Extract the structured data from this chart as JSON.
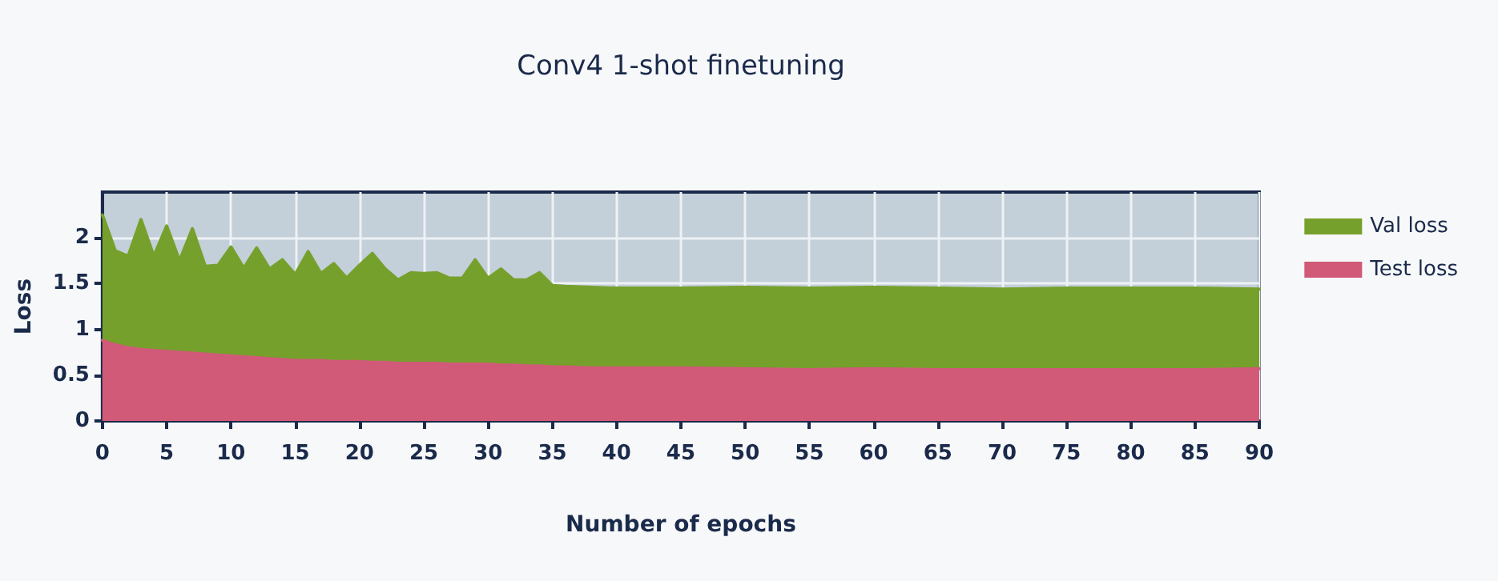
{
  "chart_data": {
    "type": "area",
    "title": "Conv4 1-shot finetuning",
    "xlabel": "Number of epochs",
    "ylabel": "Loss",
    "x": [
      0,
      1,
      2,
      3,
      4,
      5,
      6,
      7,
      8,
      9,
      10,
      11,
      12,
      13,
      14,
      15,
      16,
      17,
      18,
      19,
      20,
      21,
      22,
      23,
      24,
      25,
      26,
      27,
      28,
      29,
      30,
      31,
      32,
      33,
      34,
      35,
      36,
      38,
      40,
      45,
      50,
      55,
      60,
      65,
      70,
      75,
      80,
      85,
      90
    ],
    "series": [
      {
        "name": "Val loss",
        "color": "#76a02c",
        "values": [
          2.25,
          1.86,
          1.8,
          2.2,
          1.8,
          2.13,
          1.75,
          2.1,
          1.69,
          1.7,
          1.9,
          1.67,
          1.89,
          1.66,
          1.76,
          1.6,
          1.85,
          1.61,
          1.72,
          1.56,
          1.7,
          1.83,
          1.66,
          1.54,
          1.62,
          1.61,
          1.62,
          1.56,
          1.56,
          1.76,
          1.56,
          1.66,
          1.54,
          1.54,
          1.62,
          1.48,
          1.47,
          1.46,
          1.45,
          1.45,
          1.46,
          1.45,
          1.46,
          1.45,
          1.44,
          1.45,
          1.45,
          1.45,
          1.44
        ]
      },
      {
        "name": "Test loss",
        "color": "#d05a78",
        "values": [
          0.88,
          0.83,
          0.8,
          0.78,
          0.77,
          0.76,
          0.75,
          0.74,
          0.73,
          0.72,
          0.71,
          0.7,
          0.69,
          0.68,
          0.67,
          0.66,
          0.66,
          0.66,
          0.65,
          0.65,
          0.65,
          0.64,
          0.64,
          0.63,
          0.63,
          0.63,
          0.63,
          0.62,
          0.62,
          0.62,
          0.62,
          0.61,
          0.61,
          0.6,
          0.6,
          0.59,
          0.59,
          0.58,
          0.58,
          0.58,
          0.57,
          0.56,
          0.57,
          0.56,
          0.56,
          0.56,
          0.56,
          0.56,
          0.57
        ]
      }
    ],
    "xlim": [
      0,
      90
    ],
    "xticks": [
      0,
      5,
      10,
      15,
      20,
      25,
      30,
      35,
      40,
      45,
      50,
      55,
      60,
      65,
      70,
      75,
      80,
      85,
      90
    ],
    "ylim": [
      0,
      2.5
    ],
    "yticks": [
      0,
      0.5,
      1,
      1.5,
      2
    ],
    "grid": true,
    "legend": "right",
    "marker": "none",
    "line_style": "solid"
  }
}
